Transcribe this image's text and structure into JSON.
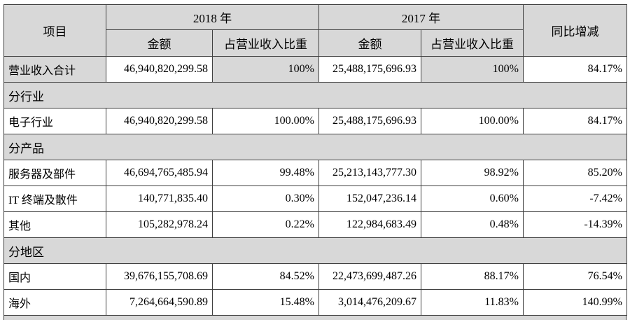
{
  "table": {
    "header": {
      "item": "项目",
      "y2018": "2018 年",
      "y2017": "2017 年",
      "amount": "金额",
      "ratio": "占营业收入比重",
      "yoy": "同比增减"
    },
    "rows": [
      {
        "type": "data",
        "shaded": true,
        "label": "营业收入合计",
        "a2018": "46,940,820,299.58",
        "r2018": "100%",
        "a2017": "25,488,175,696.93",
        "r2017": "100%",
        "yoy": "84.17%"
      },
      {
        "type": "section",
        "label": "分行业"
      },
      {
        "type": "data",
        "shaded": false,
        "label": "电子行业",
        "a2018": "46,940,820,299.58",
        "r2018": "100.00%",
        "a2017": "25,488,175,696.93",
        "r2017": "100.00%",
        "yoy": "84.17%"
      },
      {
        "type": "section",
        "label": "分产品"
      },
      {
        "type": "data",
        "shaded": false,
        "label": "服务器及部件",
        "a2018": "46,694,765,485.94",
        "r2018": "99.48%",
        "a2017": "25,213,143,777.30",
        "r2017": "98.92%",
        "yoy": "85.20%"
      },
      {
        "type": "data",
        "shaded": false,
        "label": "IT 终端及散件",
        "a2018": "140,771,835.40",
        "r2018": "0.30%",
        "a2017": "152,047,236.14",
        "r2017": "0.60%",
        "yoy": "-7.42%"
      },
      {
        "type": "data",
        "shaded": false,
        "label": "其他",
        "a2018": "105,282,978.24",
        "r2018": "0.22%",
        "a2017": "122,984,683.49",
        "r2017": "0.48%",
        "yoy": "-14.39%"
      },
      {
        "type": "section",
        "label": "分地区"
      },
      {
        "type": "data",
        "shaded": false,
        "label": "国内",
        "a2018": "39,676,155,708.69",
        "r2018": "84.52%",
        "a2017": "22,473,699,487.26",
        "r2017": "88.17%",
        "yoy": "76.54%"
      },
      {
        "type": "data",
        "shaded": false,
        "label": "海外",
        "a2018": "7,264,664,590.89",
        "r2018": "15.48%",
        "a2017": "3,014,476,209.67",
        "r2017": "11.83%",
        "yoy": "140.99%"
      }
    ],
    "colors": {
      "shade": "#d8d8d8",
      "border": "#404040",
      "text": "#000000",
      "background": "#ffffff"
    }
  }
}
